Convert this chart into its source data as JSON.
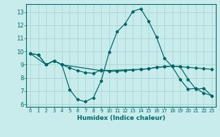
{
  "xlabel": "Humidex (Indice chaleur)",
  "ylabel": "",
  "bg_color": "#c8ecec",
  "grid_color": "#aad4d4",
  "line_color": "#006666",
  "xlim": [
    -0.5,
    23.5
  ],
  "ylim": [
    5.8,
    13.6
  ],
  "yticks": [
    6,
    7,
    8,
    9,
    10,
    11,
    12,
    13
  ],
  "xticks": [
    0,
    1,
    2,
    3,
    4,
    5,
    6,
    7,
    8,
    9,
    10,
    11,
    12,
    13,
    14,
    15,
    16,
    17,
    18,
    19,
    20,
    21,
    22,
    23
  ],
  "line1_x": [
    0,
    1,
    2,
    3,
    4,
    5,
    6,
    7,
    8,
    9,
    10,
    11,
    12,
    13,
    14,
    15,
    16,
    17,
    18,
    19,
    20,
    21,
    22,
    23
  ],
  "line1_y": [
    9.85,
    9.75,
    9.0,
    9.3,
    9.0,
    7.1,
    6.35,
    6.2,
    6.5,
    7.8,
    9.95,
    11.5,
    12.1,
    13.05,
    13.25,
    12.3,
    11.1,
    9.5,
    8.85,
    7.9,
    7.15,
    7.2,
    6.85,
    6.65
  ],
  "line2_x": [
    0,
    1,
    2,
    3,
    4,
    5,
    6,
    7,
    8,
    9,
    10,
    11,
    12,
    13,
    14,
    15,
    16,
    17,
    18,
    19,
    20,
    21,
    22,
    23
  ],
  "line2_y": [
    9.85,
    9.75,
    9.0,
    9.3,
    9.0,
    8.75,
    8.55,
    8.4,
    8.35,
    8.6,
    8.5,
    8.5,
    8.55,
    8.6,
    8.65,
    8.7,
    8.8,
    8.85,
    8.9,
    8.85,
    8.8,
    8.75,
    8.7,
    8.65
  ],
  "line3_x": [
    0,
    2,
    3,
    4,
    9,
    14,
    15,
    16,
    17,
    18,
    19,
    20,
    21,
    22,
    23
  ],
  "line3_y": [
    9.85,
    9.0,
    9.3,
    9.0,
    8.55,
    8.65,
    8.7,
    8.8,
    8.85,
    8.9,
    8.85,
    7.9,
    7.15,
    7.2,
    6.65
  ]
}
